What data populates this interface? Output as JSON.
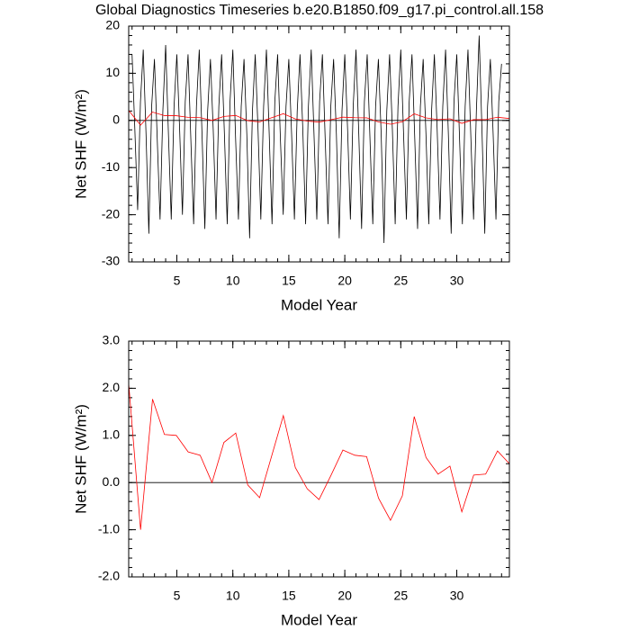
{
  "chart_data": [
    {
      "type": "line",
      "title": "Global Diagnostics Timeseries b.e20.B1850.f09_g17.pi_control.all.158",
      "xlabel": "Model Year",
      "ylabel": "Net SHF (W/m²)",
      "xlim": [
        0.7,
        34.7
      ],
      "ylim": [
        -30,
        20
      ],
      "xticks": [
        5,
        10,
        15,
        20,
        25,
        30
      ],
      "yticks": [
        -30,
        -20,
        -10,
        0,
        10,
        20
      ],
      "series": [
        {
          "color": "#000000",
          "x": [
            1,
            1.25,
            1.5,
            1.75,
            2,
            2.25,
            2.5,
            2.75,
            3,
            3.25,
            3.5,
            3.75,
            4,
            4.25,
            4.5,
            4.75,
            5,
            5.25,
            5.5,
            5.75,
            6,
            6.25,
            6.5,
            6.75,
            7,
            7.25,
            7.5,
            7.75,
            8,
            8.25,
            8.5,
            8.75,
            9,
            9.25,
            9.5,
            9.75,
            10,
            10.25,
            10.5,
            10.75,
            11,
            11.25,
            11.5,
            11.75,
            12,
            12.25,
            12.5,
            12.75,
            13,
            13.25,
            13.5,
            13.75,
            14,
            14.25,
            14.5,
            14.75,
            15,
            15.25,
            15.5,
            15.75,
            16,
            16.25,
            16.5,
            16.75,
            17,
            17.25,
            17.5,
            17.75,
            18,
            18.25,
            18.5,
            18.75,
            19,
            19.25,
            19.5,
            19.75,
            20,
            20.25,
            20.5,
            20.75,
            21,
            21.25,
            21.5,
            21.75,
            22,
            22.25,
            22.5,
            22.75,
            23,
            23.25,
            23.5,
            23.75,
            24,
            24.25,
            24.5,
            24.75,
            25,
            25.25,
            25.5,
            25.75,
            26,
            26.25,
            26.5,
            26.75,
            27,
            27.25,
            27.5,
            27.75,
            28,
            28.25,
            28.5,
            28.75,
            29,
            29.25,
            29.5,
            29.75,
            30,
            30.25,
            30.5,
            30.75,
            31,
            31.25,
            31.5,
            31.75,
            32,
            32.25,
            32.5,
            32.75,
            33,
            33.25,
            33.5,
            33.75,
            34
          ],
          "values": [
            14,
            -2,
            -19,
            4,
            15,
            -3,
            -24,
            3,
            13,
            -4,
            -21,
            2,
            16,
            -3,
            -21,
            3,
            14,
            -2,
            -20,
            4,
            14,
            -4,
            -22,
            3,
            15,
            -3,
            -23,
            2,
            13,
            -2,
            -21,
            3,
            14,
            -3,
            -22,
            4,
            15,
            -4,
            -21,
            3,
            13,
            -3,
            -25,
            2,
            14,
            -2,
            -21,
            3,
            15,
            -3,
            -22,
            4,
            14,
            -4,
            -20,
            3,
            13,
            -3,
            -21,
            2,
            14,
            -2,
            -22,
            3,
            15,
            -3,
            -21,
            4,
            14,
            -4,
            -22,
            3,
            13,
            -3,
            -25,
            2,
            14,
            -2,
            -21,
            3,
            15,
            -3,
            -23,
            4,
            14,
            -4,
            -22,
            3,
            13,
            -3,
            -26,
            2,
            14,
            -2,
            -22,
            3,
            15,
            -3,
            -21,
            4,
            14,
            -4,
            -23,
            3,
            13,
            -3,
            -22,
            2,
            14,
            -2,
            -21,
            3,
            15,
            -3,
            -24,
            4,
            14,
            -4,
            -22,
            3,
            15,
            -3,
            -21,
            2,
            18,
            -2,
            -24,
            3,
            13,
            -3,
            -21,
            4,
            12
          ]
        },
        {
          "color": "#ff0000",
          "x": [
            0.7,
            1.76,
            2.83,
            3.89,
            4.95,
            6.01,
            7.08,
            8.14,
            9.2,
            10.26,
            11.33,
            12.39,
            13.45,
            14.51,
            15.58,
            16.64,
            17.7,
            18.76,
            19.83,
            20.89,
            21.95,
            23.01,
            24.08,
            25.14,
            26.2,
            27.26,
            28.33,
            29.39,
            30.45,
            31.51,
            32.58,
            33.64,
            34.7
          ],
          "values": [
            2.1,
            -1.0,
            1.77,
            1.02,
            1.0,
            0.65,
            0.58,
            0,
            0.85,
            1.05,
            -0.05,
            -0.32,
            0.55,
            1.42,
            0.32,
            -0.13,
            -0.36,
            0.15,
            0.69,
            0.58,
            0.55,
            -0.33,
            -0.8,
            -0.28,
            1.4,
            0.53,
            0.18,
            0.35,
            -0.62,
            0.16,
            0.18,
            0.67,
            0.4
          ]
        }
      ]
    },
    {
      "type": "line",
      "xlabel": "Model Year",
      "ylabel": "Net SHF (W/m²)",
      "xlim": [
        0.7,
        34.7
      ],
      "ylim": [
        -2,
        3
      ],
      "xticks": [
        5,
        10,
        15,
        20,
        25,
        30
      ],
      "yticks": [
        {
          "value": -2,
          "label": "-2.0"
        },
        {
          "value": -1,
          "label": "-1.0"
        },
        {
          "value": 0,
          "label": "0.0"
        },
        {
          "value": 1,
          "label": "1.0"
        },
        {
          "value": 2,
          "label": "2.0"
        },
        {
          "value": 3,
          "label": "3.0"
        }
      ],
      "series": [
        {
          "color": "#ff0000",
          "x": [
            0.7,
            1.76,
            2.83,
            3.89,
            4.95,
            6.01,
            7.08,
            8.14,
            9.2,
            10.26,
            11.33,
            12.39,
            13.45,
            14.51,
            15.58,
            16.64,
            17.7,
            18.76,
            19.83,
            20.89,
            21.95,
            23.01,
            24.08,
            25.14,
            26.2,
            27.26,
            28.33,
            29.39,
            30.45,
            31.51,
            32.58,
            33.64,
            34.7
          ],
          "values": [
            2.1,
            -1.0,
            1.77,
            1.02,
            1.0,
            0.65,
            0.58,
            0,
            0.85,
            1.05,
            -0.05,
            -0.32,
            0.55,
            1.42,
            0.32,
            -0.13,
            -0.36,
            0.15,
            0.69,
            0.58,
            0.55,
            -0.33,
            -0.8,
            -0.28,
            1.4,
            0.53,
            0.18,
            0.35,
            -0.62,
            0.16,
            0.18,
            0.67,
            0.4
          ]
        }
      ]
    }
  ]
}
